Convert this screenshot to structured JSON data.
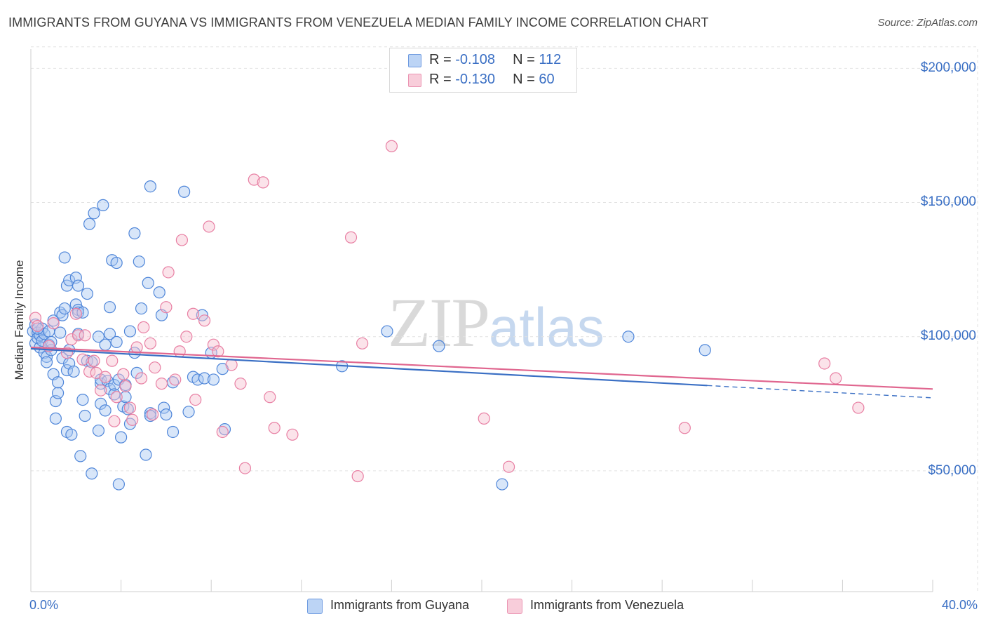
{
  "title": "IMMIGRANTS FROM GUYANA VS IMMIGRANTS FROM VENEZUELA MEDIAN FAMILY INCOME CORRELATION CHART",
  "source": "Source: ZipAtlas.com",
  "watermark": {
    "zip": "ZIP",
    "atlas": "atlas"
  },
  "colors": {
    "guyana_fill": "#a9c8f2",
    "guyana_stroke": "#4f86d9",
    "guyana_line": "#3a6fc4",
    "venezuela_fill": "#f6c0d1",
    "venezuela_stroke": "#e87fa3",
    "venezuela_line": "#e0668f",
    "grid": "#e2e2e2",
    "accent": "#3a6fc4"
  },
  "stats": [
    {
      "r_label": "R =",
      "r": "-0.108",
      "n_label": "N =",
      "n": "112"
    },
    {
      "r_label": "R =",
      "r": "-0.130",
      "n_label": "N =",
      "n": "60"
    }
  ],
  "chart_data": {
    "type": "scatter",
    "title": "IMMIGRANTS FROM GUYANA VS IMMIGRANTS FROM VENEZUELA MEDIAN FAMILY INCOME CORRELATION CHART",
    "xlabel": "",
    "ylabel": "Median Family Income",
    "xlim": [
      0,
      40
    ],
    "ylim": [
      5000,
      215000
    ],
    "x_tick_labels": [
      "0.0%",
      "40.0%"
    ],
    "y_tick_labels": [
      "$50,000",
      "$100,000",
      "$150,000",
      "$200,000"
    ],
    "y_ticks": [
      50000,
      100000,
      150000,
      200000
    ],
    "legend": [
      "Immigrants from Guyana",
      "Immigrants from Venezuela"
    ],
    "series": [
      {
        "name": "Immigrants from Guyana",
        "trend": {
          "x0": 0,
          "y0": 95500,
          "x1": 30,
          "y1": 81800,
          "dash_to_x": 40,
          "dash_to_y": 77200
        },
        "points": [
          [
            0.1,
            102000
          ],
          [
            0.2,
            104500
          ],
          [
            0.2,
            97500
          ],
          [
            0.3,
            101500
          ],
          [
            0.3,
            99500
          ],
          [
            0.4,
            100500
          ],
          [
            0.4,
            96000
          ],
          [
            0.5,
            103000
          ],
          [
            0.5,
            98500
          ],
          [
            0.6,
            101000
          ],
          [
            0.6,
            94000
          ],
          [
            0.7,
            92500
          ],
          [
            0.7,
            90500
          ],
          [
            0.8,
            102000
          ],
          [
            0.8,
            97000
          ],
          [
            0.9,
            95000
          ],
          [
            1.0,
            106000
          ],
          [
            1.0,
            86000
          ],
          [
            1.1,
            76000
          ],
          [
            1.1,
            69500
          ],
          [
            1.2,
            79000
          ],
          [
            1.2,
            83000
          ],
          [
            1.3,
            109000
          ],
          [
            1.3,
            101500
          ],
          [
            1.4,
            92000
          ],
          [
            1.4,
            108000
          ],
          [
            1.5,
            129500
          ],
          [
            1.5,
            110500
          ],
          [
            1.6,
            87500
          ],
          [
            1.6,
            64500
          ],
          [
            1.7,
            95000
          ],
          [
            1.7,
            90000
          ],
          [
            1.6,
            119000
          ],
          [
            1.7,
            121000
          ],
          [
            1.8,
            63500
          ],
          [
            1.9,
            87000
          ],
          [
            2.0,
            112000
          ],
          [
            2.0,
            122000
          ],
          [
            2.1,
            110000
          ],
          [
            2.1,
            101000
          ],
          [
            2.1,
            109000
          ],
          [
            2.1,
            119000
          ],
          [
            2.2,
            55500
          ],
          [
            2.3,
            76500
          ],
          [
            2.3,
            109000
          ],
          [
            2.4,
            70500
          ],
          [
            2.5,
            91000
          ],
          [
            2.5,
            116000
          ],
          [
            2.6,
            142000
          ],
          [
            2.7,
            90500
          ],
          [
            2.7,
            49000
          ],
          [
            2.8,
            146000
          ],
          [
            3.0,
            100000
          ],
          [
            3.0,
            65000
          ],
          [
            3.1,
            82500
          ],
          [
            3.1,
            75000
          ],
          [
            3.1,
            84000
          ],
          [
            3.2,
            149000
          ],
          [
            3.3,
            72500
          ],
          [
            3.3,
            97000
          ],
          [
            3.4,
            83500
          ],
          [
            3.5,
            80500
          ],
          [
            3.5,
            111000
          ],
          [
            3.5,
            101000
          ],
          [
            3.6,
            128500
          ],
          [
            3.7,
            82000
          ],
          [
            3.7,
            78500
          ],
          [
            3.8,
            127500
          ],
          [
            3.8,
            98000
          ],
          [
            3.9,
            84000
          ],
          [
            3.9,
            45000
          ],
          [
            4.0,
            62500
          ],
          [
            4.1,
            74000
          ],
          [
            4.2,
            77500
          ],
          [
            4.2,
            82000
          ],
          [
            4.3,
            73000
          ],
          [
            4.4,
            102000
          ],
          [
            4.4,
            67500
          ],
          [
            4.6,
            138500
          ],
          [
            4.6,
            94000
          ],
          [
            4.7,
            86500
          ],
          [
            4.8,
            128000
          ],
          [
            4.9,
            110500
          ],
          [
            5.1,
            56000
          ],
          [
            5.2,
            120000
          ],
          [
            5.3,
            156000
          ],
          [
            5.3,
            71500
          ],
          [
            5.3,
            70500
          ],
          [
            5.7,
            116500
          ],
          [
            5.8,
            108000
          ],
          [
            5.9,
            73500
          ],
          [
            6.0,
            71000
          ],
          [
            6.3,
            64500
          ],
          [
            6.3,
            83000
          ],
          [
            6.8,
            154000
          ],
          [
            7.0,
            72000
          ],
          [
            7.2,
            85000
          ],
          [
            7.4,
            84000
          ],
          [
            7.7,
            84500
          ],
          [
            7.6,
            108000
          ],
          [
            8.0,
            94000
          ],
          [
            8.1,
            84000
          ],
          [
            8.5,
            88000
          ],
          [
            8.6,
            65500
          ],
          [
            13.8,
            89000
          ],
          [
            15.8,
            102000
          ],
          [
            18.1,
            96500
          ],
          [
            20.9,
            45000
          ],
          [
            26.5,
            100000
          ],
          [
            29.9,
            95000
          ],
          [
            0.3,
            103000
          ],
          [
            0.9,
            98000
          ]
        ]
      },
      {
        "name": "Immigrants from Venezuela",
        "trend": {
          "x0": 0,
          "y0": 96000,
          "x1": 40,
          "y1": 80500
        },
        "points": [
          [
            0.2,
            107000
          ],
          [
            0.3,
            104000
          ],
          [
            0.8,
            96500
          ],
          [
            1.0,
            105000
          ],
          [
            1.6,
            94000
          ],
          [
            1.8,
            99000
          ],
          [
            2.1,
            100500
          ],
          [
            2.3,
            91500
          ],
          [
            2.4,
            100500
          ],
          [
            2.6,
            87000
          ],
          [
            2.8,
            91000
          ],
          [
            2.9,
            86500
          ],
          [
            3.1,
            80000
          ],
          [
            3.3,
            85000
          ],
          [
            3.6,
            91000
          ],
          [
            3.7,
            68500
          ],
          [
            3.8,
            77500
          ],
          [
            4.1,
            86000
          ],
          [
            4.2,
            81500
          ],
          [
            4.4,
            73500
          ],
          [
            4.5,
            69000
          ],
          [
            4.7,
            96000
          ],
          [
            4.9,
            84500
          ],
          [
            5.0,
            103500
          ],
          [
            5.3,
            97500
          ],
          [
            5.4,
            71000
          ],
          [
            5.8,
            82500
          ],
          [
            6.0,
            111000
          ],
          [
            6.1,
            124000
          ],
          [
            6.4,
            84000
          ],
          [
            6.6,
            94500
          ],
          [
            6.7,
            136000
          ],
          [
            7.2,
            108500
          ],
          [
            7.3,
            76500
          ],
          [
            7.7,
            106000
          ],
          [
            7.9,
            141000
          ],
          [
            8.1,
            97000
          ],
          [
            8.3,
            94500
          ],
          [
            8.5,
            64500
          ],
          [
            8.9,
            89500
          ],
          [
            9.3,
            82500
          ],
          [
            9.5,
            51000
          ],
          [
            9.9,
            158500
          ],
          [
            10.3,
            157500
          ],
          [
            10.6,
            77500
          ],
          [
            10.8,
            66000
          ],
          [
            11.6,
            63500
          ],
          [
            14.2,
            137000
          ],
          [
            14.5,
            48000
          ],
          [
            14.7,
            97500
          ],
          [
            16.0,
            171000
          ],
          [
            20.1,
            69500
          ],
          [
            21.2,
            51500
          ],
          [
            29.0,
            66000
          ],
          [
            35.2,
            90000
          ],
          [
            35.7,
            84500
          ],
          [
            36.7,
            73500
          ],
          [
            6.9,
            100000
          ],
          [
            2.0,
            108500
          ],
          [
            5.5,
            88500
          ]
        ]
      }
    ]
  }
}
